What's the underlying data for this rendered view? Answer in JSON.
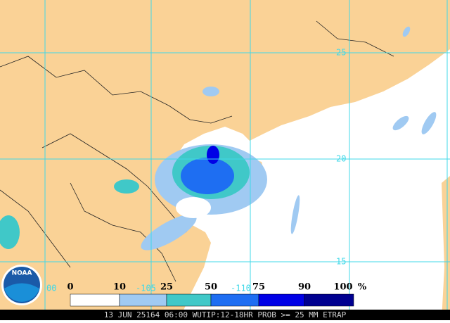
{
  "map": {
    "lat_labels": [
      "25",
      "20",
      "15"
    ],
    "lon_labels": [
      "00",
      "-105",
      "-110"
    ]
  },
  "legend": {
    "labels": [
      "0",
      "10",
      "25",
      "50",
      "75",
      "90",
      "100"
    ],
    "unit": "%",
    "colors": [
      "#ffffff",
      "#a0caf2",
      "#40c8c8",
      "#1e6ef2",
      "#0000e6",
      "#000090"
    ]
  },
  "logo": "NOAA",
  "caption": "13 JUN 25164 06:00 WUTIP:12-18HR PROB >= 25 MM ETRAP"
}
